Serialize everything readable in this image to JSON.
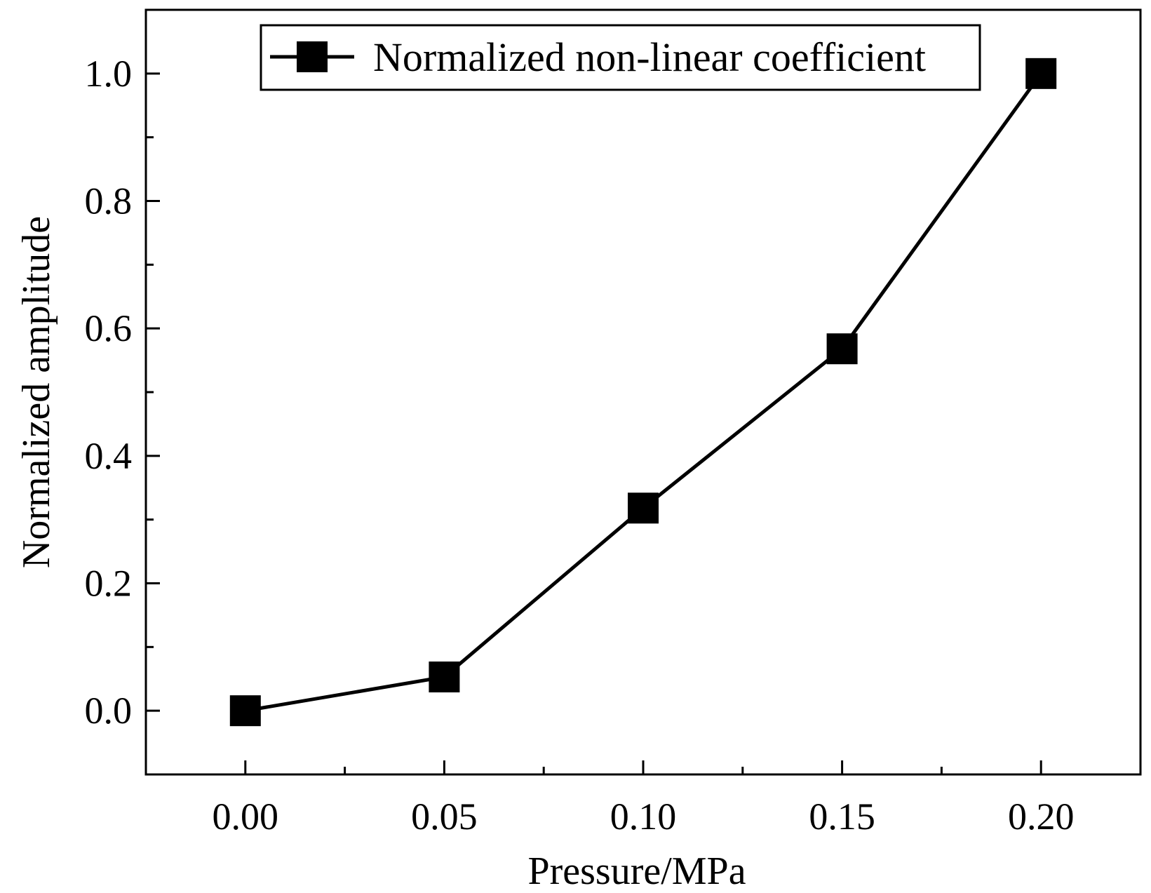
{
  "chart_data": {
    "type": "line",
    "xlabel": "Pressure/MPa",
    "ylabel": "Normalized amplitude",
    "xlim": [
      -0.025,
      0.225
    ],
    "ylim": [
      -0.1,
      1.1
    ],
    "x_ticks": [
      "0.00",
      "0.05",
      "0.10",
      "0.15",
      "0.20"
    ],
    "x_tick_values": [
      0.0,
      0.05,
      0.1,
      0.15,
      0.2
    ],
    "y_ticks": [
      "0.0",
      "0.2",
      "0.4",
      "0.6",
      "0.8",
      "1.0"
    ],
    "y_tick_values": [
      0.0,
      0.2,
      0.4,
      0.6,
      0.8,
      1.0
    ],
    "legend_position": "top-right",
    "grid": false,
    "series": [
      {
        "name": "Normalized non-linear coefficient",
        "marker": "square",
        "color": "#000000",
        "x": [
          0.0,
          0.05,
          0.1,
          0.15,
          0.2
        ],
        "y": [
          0.0,
          0.053,
          0.318,
          0.568,
          1.0
        ]
      }
    ]
  }
}
